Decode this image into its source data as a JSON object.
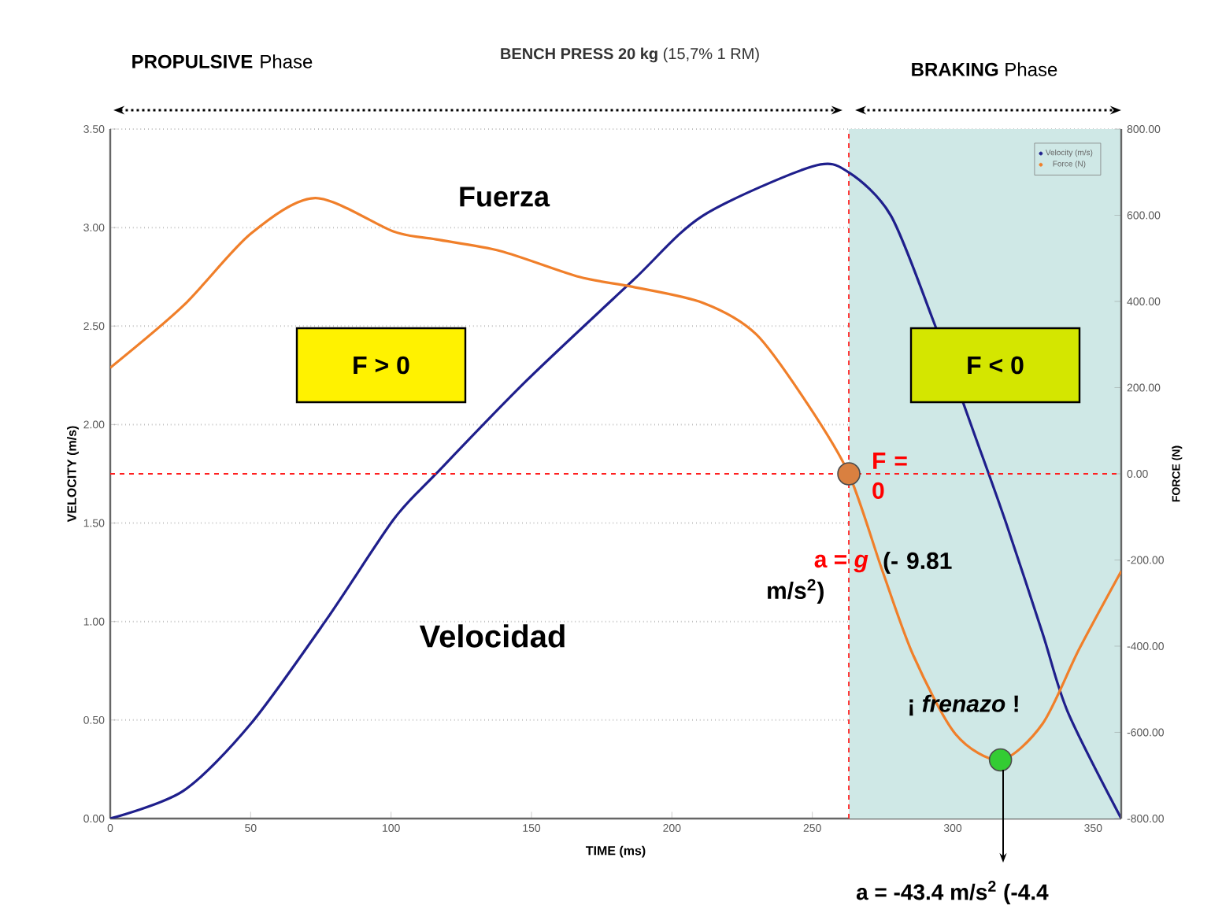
{
  "chart_data": {
    "type": "line",
    "title": "**BENCH PRESS 20 kg** (15,7% 1 RM)",
    "xlabel": "TIME (ms)",
    "ylabel": "VELOCITY (m/s)",
    "y2label": "FORCE (N)",
    "xlim": [
      0,
      360
    ],
    "xticks": [
      0,
      50,
      100,
      150,
      200,
      250,
      300,
      350
    ],
    "ylim": [
      0,
      3.5
    ],
    "yticks": [
      {
        "value": 0,
        "label": "0.00"
      },
      {
        "value": 0.5,
        "label": "0.50"
      },
      {
        "value": 1,
        "label": "1.00"
      },
      {
        "value": 1.5,
        "label": "1.50"
      },
      {
        "value": 2,
        "label": "2.00"
      },
      {
        "value": 2.5,
        "label": "2.50"
      },
      {
        "value": 3,
        "label": "3.00"
      },
      {
        "value": 3.5,
        "label": "3.50"
      }
    ],
    "y2lim": [
      -800,
      800
    ],
    "y2ticks": [
      {
        "value": -800,
        "label": "-800.00"
      },
      {
        "value": -600,
        "label": "-600.00"
      },
      {
        "value": -400,
        "label": "-400.00"
      },
      {
        "value": -200,
        "label": "-200.00"
      },
      {
        "value": 0,
        "label": "0.00"
      },
      {
        "value": 200,
        "label": "200.00"
      },
      {
        "value": 400,
        "label": "400.00"
      },
      {
        "value": 600,
        "label": "600.00"
      },
      {
        "value": 800,
        "label": "800.00"
      }
    ],
    "grid": "y",
    "legend": "top right",
    "series": [
      {
        "name": "Velocity (m/s)",
        "color": "#1f1f8c",
        "x": [
          0,
          26,
          50,
          77,
          101,
          116,
          148,
          186,
          211,
          250,
          263,
          278,
          293,
          308,
          319,
          332,
          341,
          360
        ],
        "values": [
          0,
          0.14,
          0.48,
          1.01,
          1.52,
          1.75,
          2.22,
          2.73,
          3.06,
          3.31,
          3.28,
          3.06,
          2.53,
          1.94,
          1.5,
          0.94,
          0.54,
          0
        ]
      },
      {
        "name": "Force (N)",
        "color": "#f07f2a",
        "axis": "y2",
        "x": [
          0,
          26,
          50,
          73,
          101,
          116,
          139,
          167,
          186,
          211,
          230,
          248,
          263,
          275,
          286,
          301,
          317,
          332,
          345,
          360
        ],
        "values": [
          246,
          390,
          557,
          640,
          562,
          544,
          517,
          457,
          434,
          397,
          324,
          165,
          0,
          -226,
          -422,
          -604,
          -664,
          -580,
          -407,
          -226
        ]
      },
      {
        "type": "scatter",
        "axis": "y2",
        "color": "#d98040",
        "x": [
          263
        ],
        "values": [
          0
        ]
      },
      {
        "type": "scatter",
        "axis": "y2",
        "color": "#33cc33",
        "x": [
          317
        ],
        "values": [
          -664
        ]
      }
    ],
    "ref_lines": [
      {
        "axis": "y2",
        "value": 0,
        "color": "#ff2020",
        "line_style": "dashed"
      },
      {
        "axis": "x",
        "value": 263,
        "color": "#ff2020",
        "line_style": "dashed"
      }
    ],
    "bands": [
      {
        "axis": "x",
        "from": 263,
        "to": 360,
        "color": "#cfe8e6"
      }
    ],
    "annotations": [
      "**PROPULSIVE** Phase",
      "**BRAKING** Phase",
      "Fuerza",
      "Velocidad",
      "F > 0",
      "F < 0",
      "F = 0",
      "a = *g*",
      "(- 9.81 m/s$^{2}$)",
      "¡ *frenazo* !",
      "a = -43.4 m/s$^{2}$ (-4.4"
    ]
  }
}
